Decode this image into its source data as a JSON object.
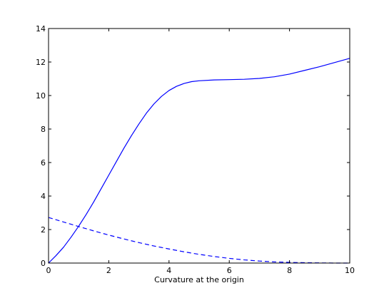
{
  "chart_data": {
    "type": "line",
    "title": "",
    "xlabel": "Curvature at the origin",
    "ylabel": "",
    "xlim": [
      0,
      10
    ],
    "ylim": [
      0,
      14
    ],
    "xticks": [
      0,
      2,
      4,
      6,
      8,
      10
    ],
    "yticks": [
      0,
      2,
      4,
      6,
      8,
      10,
      12,
      14
    ],
    "xtick_labels": [
      "0",
      "2",
      "4",
      "6",
      "8",
      "10"
    ],
    "ytick_labels": [
      "0",
      "2",
      "4",
      "6",
      "8",
      "10",
      "12",
      "14"
    ],
    "grid": false,
    "series": [
      {
        "style": "solid",
        "color": "#0000ff",
        "x": [
          0,
          0.25,
          0.5,
          0.75,
          1.0,
          1.25,
          1.5,
          1.75,
          2.0,
          2.25,
          2.5,
          2.75,
          3.0,
          3.25,
          3.5,
          3.75,
          4.0,
          4.25,
          4.5,
          4.75,
          5.0,
          5.5,
          6.0,
          6.5,
          7.0,
          7.5,
          8.0,
          8.5,
          9.0,
          9.5,
          10.0
        ],
        "y": [
          0.0,
          0.45,
          0.95,
          1.55,
          2.2,
          2.9,
          3.65,
          4.45,
          5.25,
          6.05,
          6.85,
          7.6,
          8.3,
          8.95,
          9.5,
          9.95,
          10.3,
          10.55,
          10.72,
          10.83,
          10.88,
          10.93,
          10.95,
          10.97,
          11.02,
          11.12,
          11.28,
          11.5,
          11.72,
          11.97,
          12.22
        ]
      },
      {
        "style": "dashed",
        "color": "#0000ff",
        "x": [
          0,
          0.5,
          1.0,
          1.5,
          2.0,
          2.5,
          3.0,
          3.5,
          4.0,
          4.5,
          5.0,
          5.5,
          6.0,
          6.5,
          7.0,
          7.5,
          8.0,
          8.5,
          9.0,
          9.5,
          10.0
        ],
        "y": [
          2.72,
          2.45,
          2.18,
          1.92,
          1.67,
          1.44,
          1.22,
          1.02,
          0.84,
          0.67,
          0.52,
          0.39,
          0.28,
          0.19,
          0.12,
          0.07,
          0.04,
          0.02,
          0.01,
          0.0,
          0.0
        ]
      }
    ]
  }
}
